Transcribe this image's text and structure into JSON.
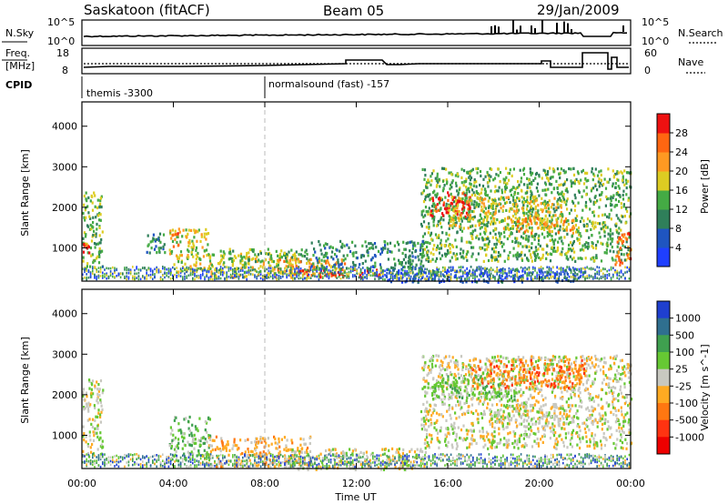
{
  "header": {
    "station": "Saskatoon (fitACF)",
    "beam": "Beam 05",
    "date": "29/Jan/2009"
  },
  "panel_nsky": {
    "left_label": "N.Sky",
    "right_label": "N.Search",
    "left_ticks": [
      "10^5",
      "10^0"
    ],
    "right_ticks": [
      "10^5",
      "10^0"
    ]
  },
  "panel_freq": {
    "left_label_1": "Freq.",
    "left_label_2": "[MHz]",
    "right_label": "Nave",
    "left_ticks": [
      "18",
      "8"
    ],
    "right_ticks": [
      "60",
      "0"
    ]
  },
  "cpid": {
    "label": "CPID",
    "segments": [
      "themis -3300",
      "normalsound (fast) -157"
    ]
  },
  "xaxis": {
    "label": "Time UT",
    "ticks": [
      "00:00",
      "04:00",
      "08:00",
      "12:00",
      "16:00",
      "20:00",
      "00:00"
    ]
  },
  "yaxis": {
    "label": "Slant Range [km]",
    "ticks": [
      "1000",
      "2000",
      "3000",
      "4000"
    ]
  },
  "colorbar_power": {
    "label": "Power [dB]",
    "ticks": [
      "4",
      "8",
      "12",
      "16",
      "20",
      "24",
      "28"
    ],
    "colors": [
      "#1f3fff",
      "#1f55c0",
      "#2f7f5a",
      "#44aa44",
      "#ddcc22",
      "#ff9922",
      "#ff6611",
      "#ee1111"
    ]
  },
  "colorbar_velocity": {
    "label": "Velocity [m s^-1]",
    "ticks": [
      "1000",
      "500",
      "100",
      "25",
      "-25",
      "-100",
      "-500",
      "-1000"
    ],
    "colors": [
      "#1f3fcf",
      "#2f6f8f",
      "#3fa04f",
      "#66c833",
      "#c8c8c0",
      "#ffaa22",
      "#ff7711",
      "#ff3311",
      "#ee0000"
    ]
  },
  "chart_data": [
    {
      "type": "heatmap",
      "name": "power",
      "x_range_hours": [
        0,
        24
      ],
      "y_range_km": [
        180,
        4600
      ],
      "regions": [
        {
          "t": [
            0.0,
            0.9
          ],
          "r": [
            500,
            2400
          ],
          "level": 3
        },
        {
          "t": [
            0.0,
            0.3
          ],
          "r": [
            800,
            1200
          ],
          "level": 7
        },
        {
          "t": [
            2.8,
            3.6
          ],
          "r": [
            900,
            1500
          ],
          "level": 2
        },
        {
          "t": [
            3.8,
            5.6
          ],
          "r": [
            400,
            1500
          ],
          "level": 4
        },
        {
          "t": [
            3.9,
            4.2
          ],
          "r": [
            1000,
            1400
          ],
          "level": 6
        },
        {
          "t": [
            5.5,
            9.5
          ],
          "r": [
            300,
            900
          ],
          "level": 4
        },
        {
          "t": [
            6.0,
            10.0
          ],
          "r": [
            650,
            1000
          ],
          "level": 3
        },
        {
          "t": [
            8.5,
            11.5
          ],
          "r": [
            350,
            750
          ],
          "level": 5
        },
        {
          "t": [
            9.5,
            13.0
          ],
          "r": [
            300,
            500
          ],
          "level": 7
        },
        {
          "t": [
            10.0,
            15.0
          ],
          "r": [
            500,
            1200
          ],
          "level": 2
        },
        {
          "t": [
            13.0,
            22.0
          ],
          "r": [
            180,
            500
          ],
          "level": 1
        },
        {
          "t": [
            14.8,
            24.0
          ],
          "r": [
            700,
            3000
          ],
          "level": 3
        },
        {
          "t": [
            15.2,
            17.0
          ],
          "r": [
            1800,
            2400
          ],
          "level": 7
        },
        {
          "t": [
            16.0,
            21.0
          ],
          "r": [
            1500,
            2300
          ],
          "level": 4
        },
        {
          "t": [
            19.0,
            21.5
          ],
          "r": [
            1400,
            1800
          ],
          "level": 5
        },
        {
          "t": [
            23.3,
            24.0
          ],
          "r": [
            600,
            1400
          ],
          "level": 6
        }
      ]
    },
    {
      "type": "heatmap",
      "name": "velocity",
      "x_range_hours": [
        0,
        24
      ],
      "y_range_km": [
        180,
        4600
      ],
      "regions": [
        {
          "t": [
            0.0,
            0.9
          ],
          "r": [
            500,
            2400
          ],
          "level": 4
        },
        {
          "t": [
            3.8,
            5.6
          ],
          "r": [
            400,
            1500
          ],
          "level": 3
        },
        {
          "t": [
            5.5,
            10.0
          ],
          "r": [
            250,
            1000
          ],
          "level": 5
        },
        {
          "t": [
            9.0,
            15.0
          ],
          "r": [
            180,
            700
          ],
          "level": 4
        },
        {
          "t": [
            14.8,
            24.0
          ],
          "r": [
            700,
            3000
          ],
          "level": 4
        },
        {
          "t": [
            15.2,
            19.0
          ],
          "r": [
            1900,
            2500
          ],
          "level": 3
        },
        {
          "t": [
            17.0,
            22.0
          ],
          "r": [
            2200,
            2900
          ],
          "level": 6
        },
        {
          "t": [
            18.0,
            21.5
          ],
          "r": [
            1300,
            1800
          ],
          "level": 4
        }
      ]
    }
  ]
}
